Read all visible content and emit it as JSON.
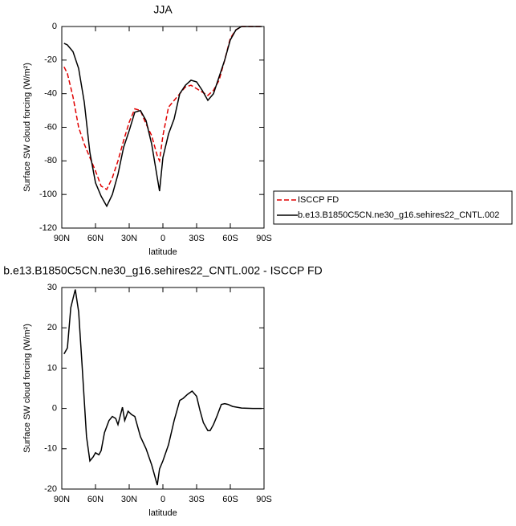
{
  "chart_data": [
    {
      "type": "line",
      "title": "JJA",
      "xlabel": "latitude",
      "ylabel": "Surface SW cloud forcing (W/m²)",
      "xlim": [
        90,
        -90
      ],
      "xticks": [
        {
          "value": 90,
          "label": "90N"
        },
        {
          "value": 60,
          "label": "60N"
        },
        {
          "value": 30,
          "label": "30N"
        },
        0,
        {
          "value": -30,
          "label": "30S"
        },
        {
          "value": -60,
          "label": "60S"
        },
        {
          "value": -90,
          "label": "90S"
        }
      ],
      "ylim": [
        -120,
        0
      ],
      "yticks": [
        -120,
        -100,
        -80,
        -60,
        -40,
        -20,
        0
      ],
      "legend": "right",
      "x": [
        88,
        85,
        80,
        75,
        70,
        65,
        60,
        55,
        50,
        45,
        40,
        35,
        30,
        25,
        20,
        15,
        10,
        5,
        3,
        0,
        -5,
        -10,
        -15,
        -20,
        -25,
        -30,
        -35,
        -40,
        -45,
        -50,
        -55,
        -60,
        -65,
        -70,
        -75,
        -80,
        -88
      ],
      "series": [
        {
          "name": "ISCCP FD",
          "color": "#e00000",
          "dash": true,
          "values": [
            -24,
            -28,
            -42,
            -60,
            -70,
            -78,
            -86,
            -95,
            -97,
            -90,
            -80,
            -68,
            -57,
            -49,
            -50,
            -58,
            -65,
            -77,
            -80,
            -65,
            -48,
            -44,
            -40,
            -36,
            -35,
            -37,
            -39,
            -41,
            -38,
            -32,
            -20,
            -7,
            -2,
            0,
            0,
            0,
            0
          ]
        },
        {
          "name": "b.e13.B1850C5CN.ne30_g16.sehires22_CNTL.002",
          "color": "#000000",
          "dash": false,
          "values": [
            -10,
            -11,
            -15,
            -25,
            -45,
            -75,
            -93,
            -101,
            -107,
            -100,
            -88,
            -72,
            -62,
            -51,
            -50,
            -56,
            -70,
            -90,
            -98,
            -78,
            -64,
            -55,
            -40,
            -35,
            -32,
            -33,
            -38,
            -44,
            -40,
            -30,
            -20,
            -8,
            -2,
            0,
            0,
            0,
            0
          ]
        }
      ]
    },
    {
      "type": "line",
      "title": "b.e13.B1850C5CN.ne30_g16.sehires22_CNTL.002 - ISCCP FD",
      "xlabel": "latitude",
      "ylabel": "Surface SW cloud forcing (W/m²)",
      "xlim": [
        90,
        -90
      ],
      "xticks": [
        {
          "value": 90,
          "label": "90N"
        },
        {
          "value": 60,
          "label": "60N"
        },
        {
          "value": 30,
          "label": "30N"
        },
        0,
        {
          "value": -30,
          "label": "30S"
        },
        {
          "value": -60,
          "label": "60S"
        },
        {
          "value": -90,
          "label": "90S"
        }
      ],
      "ylim": [
        -20,
        30
      ],
      "yticks": [
        -20,
        -10,
        0,
        10,
        20,
        30
      ],
      "x": [
        88,
        85,
        82,
        78,
        75,
        72,
        68,
        65,
        62,
        60,
        57,
        55,
        52,
        48,
        45,
        42,
        40,
        36,
        34,
        31,
        28,
        25,
        20,
        15,
        10,
        5,
        3,
        0,
        -5,
        -10,
        -15,
        -18,
        -22,
        -26,
        -30,
        -33,
        -36,
        -40,
        -42,
        -45,
        -48,
        -52,
        -55,
        -58,
        -62,
        -70,
        -80,
        -88
      ],
      "series": [
        {
          "color": "#000000",
          "dash": false,
          "values": [
            13.5,
            15,
            25,
            29.5,
            24,
            11,
            -7,
            -13,
            -12,
            -11,
            -11.5,
            -10.5,
            -6,
            -3,
            -2,
            -2.5,
            -4,
            0.3,
            -3,
            -0.7,
            -1.5,
            -2,
            -7,
            -10,
            -14,
            -19,
            -15,
            -13,
            -9,
            -3,
            2,
            2.5,
            3.5,
            4.3,
            3,
            -0.5,
            -3.5,
            -5.5,
            -5.5,
            -4,
            -2,
            1,
            1.2,
            1,
            0.5,
            0.1,
            0,
            0
          ]
        }
      ]
    }
  ]
}
